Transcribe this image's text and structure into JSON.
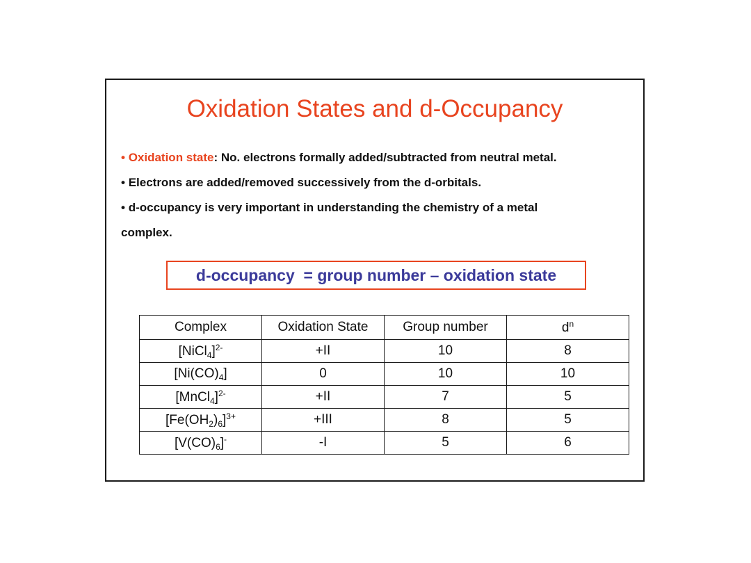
{
  "slide": {
    "title": "Oxidation States and d-Occupancy",
    "bullets": [
      {
        "dot": "• ",
        "highlight": "Oxidation state",
        "text": ": No. electrons formally added/subtracted from neutral metal."
      },
      {
        "dot": "• ",
        "highlight": "",
        "text": "Electrons are added/removed successively from the d-orbitals."
      },
      {
        "dot": "• ",
        "highlight": "",
        "text": "d-occupancy is very important in understanding the chemistry of a metal"
      },
      {
        "dot": "",
        "highlight": "",
        "text": "complex."
      }
    ],
    "formula": "d-occupancy  = group number – oxidation state"
  },
  "table": {
    "headers": {
      "complex": "Complex",
      "oxidation": "Oxidation State",
      "group": "Group number",
      "dn_base": "d",
      "dn_sup": "n"
    },
    "rows": [
      {
        "c_base": "[NiCl",
        "c_sub": "4",
        "c_end": "]",
        "c_sup": "2-",
        "ox": "+II",
        "group": "10",
        "dn": "8"
      },
      {
        "c_base": "[Ni(CO)",
        "c_sub": "4",
        "c_end": "]",
        "c_sup": "",
        "ox": "0",
        "group": "10",
        "dn": "10"
      },
      {
        "c_base": "[MnCl",
        "c_sub": "4",
        "c_end": "]",
        "c_sup": "2-",
        "ox": "+II",
        "group": "7",
        "dn": "5"
      },
      {
        "c_base": "[Fe(OH",
        "c_sub": "2",
        "c_mid": ")",
        "c_sub2": "6",
        "c_end": "]",
        "c_sup": "3+",
        "ox": "+III",
        "group": "8",
        "dn": "5"
      },
      {
        "c_base": "[V(CO)",
        "c_sub": "6",
        "c_end": "]",
        "c_sup": "-",
        "ox": "-I",
        "group": "5",
        "dn": "6"
      }
    ]
  },
  "colors": {
    "accent": "#e8441f",
    "formula_text": "#3b3a9a",
    "text": "#111111"
  }
}
